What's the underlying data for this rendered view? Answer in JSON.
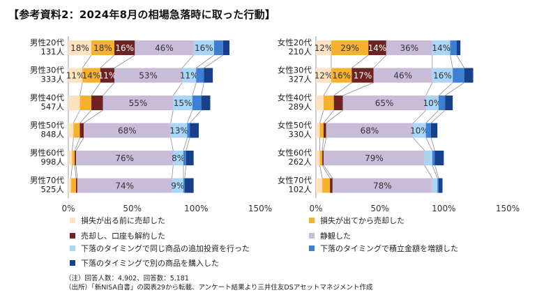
{
  "title": "【参考資料2：2024年8月の相場急落時に取った行動】",
  "colors": [
    "#fde2c0",
    "#f6b12e",
    "#6e2323",
    "#c9bcd9",
    "#a9d6f7",
    "#3e7fd6",
    "#173f8a"
  ],
  "legend": [
    "損失が出る前に売却した",
    "損失が出てから売却した",
    "売却し、口座も解約した",
    "静観した",
    "下落のタイミングで同じ商品の追加投資を行った",
    "下落のタイミングで積立金額を増額した",
    "下落のタイミングで別の商品を購入した"
  ],
  "notes": [
    "（注）回答人数：4,902、回答数：5,181",
    "（出所）「新NISA白書」の図表29から転載、アンケート結果より三井住友DSアセットマネジメント作成"
  ],
  "chart_data": [
    {
      "type": "bar",
      "orientation": "horizontal",
      "stacked": true,
      "xlim": [
        0,
        150
      ],
      "xticks": [
        "0%",
        "50%",
        "100%",
        "150%"
      ],
      "categories": [
        {
          "group": "男性20代",
          "count": "131人"
        },
        {
          "group": "男性30代",
          "count": "333人"
        },
        {
          "group": "男性40代",
          "count": "547人"
        },
        {
          "group": "男性50代",
          "count": "848人"
        },
        {
          "group": "男性60代",
          "count": "998人"
        },
        {
          "group": "男性70代",
          "count": "525人"
        }
      ],
      "values": [
        [
          18,
          18,
          16,
          46,
          16,
          7,
          5
        ],
        [
          11,
          14,
          11,
          53,
          11,
          6,
          7
        ],
        [
          9,
          9,
          9,
          55,
          15,
          7,
          7
        ],
        [
          4,
          5,
          3,
          68,
          13,
          2,
          7
        ],
        [
          3,
          2,
          1,
          76,
          8,
          2,
          6
        ],
        [
          2,
          4,
          1,
          74,
          9,
          1,
          7
        ]
      ],
      "labels": [
        [
          "18%",
          "18%",
          "16%",
          "46%",
          "16%",
          "",
          ""
        ],
        [
          "11%",
          "14%",
          "11%",
          "53%",
          "11%",
          "",
          ""
        ],
        [
          "",
          "",
          "",
          "55%",
          "15%",
          "",
          ""
        ],
        [
          "",
          "",
          "",
          "68%",
          "13%",
          "",
          ""
        ],
        [
          "",
          "",
          "",
          "76%",
          "8%",
          "",
          ""
        ],
        [
          "",
          "",
          "",
          "74%",
          "9%",
          "",
          ""
        ]
      ]
    },
    {
      "type": "bar",
      "orientation": "horizontal",
      "stacked": true,
      "xlim": [
        0,
        150
      ],
      "xticks": [
        "0%",
        "50%",
        "100%",
        "150%"
      ],
      "categories": [
        {
          "group": "女性20代",
          "count": "210人"
        },
        {
          "group": "女性30代",
          "count": "327人"
        },
        {
          "group": "女性40代",
          "count": "289人"
        },
        {
          "group": "女性50代",
          "count": "330人"
        },
        {
          "group": "女性60代",
          "count": "262人"
        },
        {
          "group": "女性70代",
          "count": "102人"
        }
      ],
      "values": [
        [
          12,
          29,
          14,
          36,
          14,
          5,
          3
        ],
        [
          12,
          16,
          17,
          46,
          16,
          9,
          7
        ],
        [
          6,
          8,
          7,
          65,
          10,
          5,
          6
        ],
        [
          3,
          3,
          2,
          68,
          10,
          4,
          5
        ],
        [
          3,
          2,
          1,
          79,
          6,
          2,
          7
        ],
        [
          5,
          6,
          2,
          78,
          4,
          1,
          3
        ]
      ],
      "labels": [
        [
          "12%",
          "29%",
          "14%",
          "36%",
          "14%",
          "",
          ""
        ],
        [
          "12%",
          "16%",
          "17%",
          "46%",
          "16%",
          "",
          ""
        ],
        [
          "",
          "",
          "",
          "65%",
          "10%",
          "",
          ""
        ],
        [
          "",
          "",
          "",
          "68%",
          "10%",
          "",
          ""
        ],
        [
          "",
          "",
          "",
          "79%",
          "",
          "",
          ""
        ],
        [
          "",
          "",
          "",
          "78%",
          "",
          "",
          ""
        ]
      ]
    }
  ]
}
